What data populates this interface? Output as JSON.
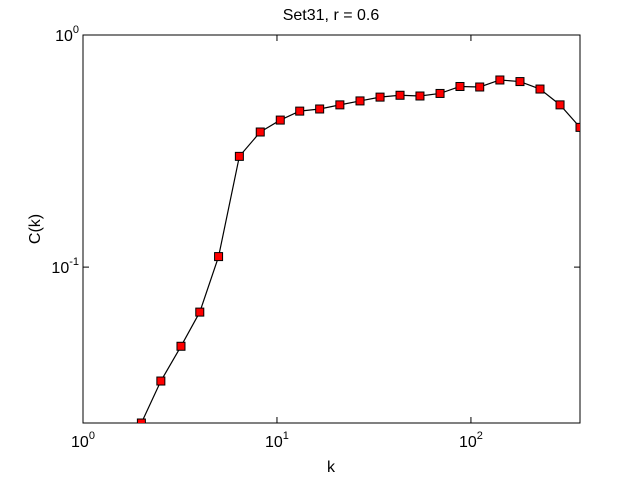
{
  "chart_data": {
    "type": "line",
    "title": "Set31, r = 0.6",
    "x_label": "k",
    "y_label": "C(k)",
    "x": [
      2,
      2.52,
      3.2,
      4.0,
      5.0,
      6.4,
      8.2,
      10.4,
      13.1,
      16.6,
      21.1,
      26.8,
      34.0,
      43.1,
      54.6,
      69.3,
      87.8,
      111,
      141,
      179,
      227,
      288,
      365
    ],
    "series": [
      {
        "name": "C(k)",
        "color": "#ff0000",
        "line_color": "#000000",
        "values": [
          0.0213,
          0.0323,
          0.0456,
          0.064,
          0.111,
          0.3,
          0.382,
          0.43,
          0.47,
          0.48,
          0.5,
          0.52,
          0.54,
          0.55,
          0.546,
          0.56,
          0.6,
          0.597,
          0.64,
          0.63,
          0.585,
          0.5,
          0.4
        ]
      }
    ],
    "xlim": [
      1,
      365
    ],
    "ylim": [
      0.0213,
      1
    ],
    "log_x": true,
    "log_y": true,
    "xticks": [
      {
        "value": 1,
        "label": "10^0"
      },
      {
        "value": 10,
        "label": "10^1"
      },
      {
        "value": 100,
        "label": "10^2"
      }
    ],
    "yticks": [
      {
        "value": 0.1,
        "label": "10^-1"
      },
      {
        "value": 1,
        "label": "10^0"
      }
    ]
  }
}
